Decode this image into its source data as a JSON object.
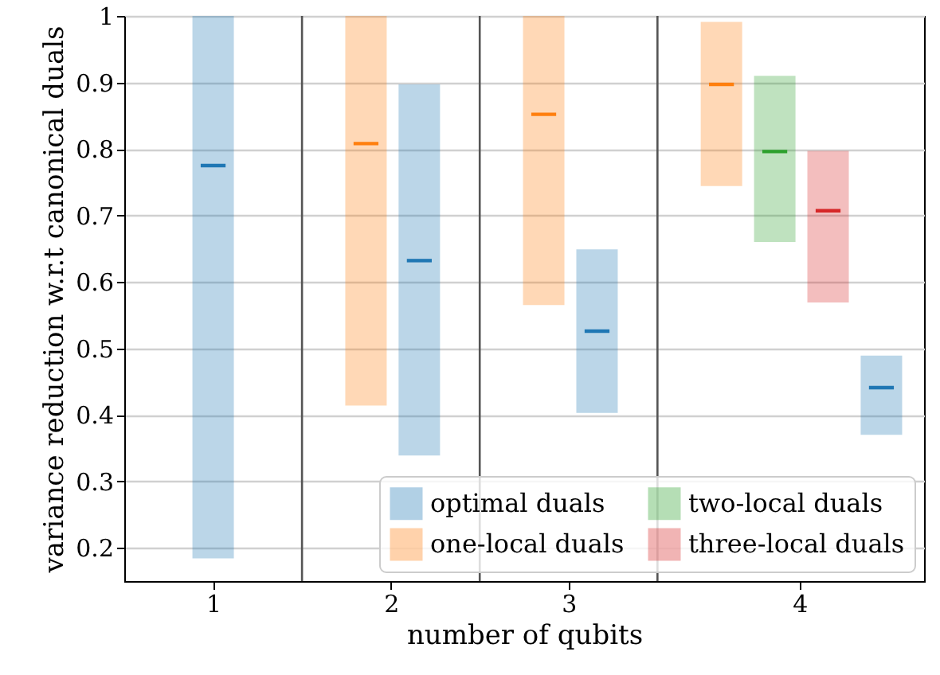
{
  "chart_data": {
    "type": "bar",
    "xlabel": "number of qubits",
    "ylabel": "variance reduction w.r.t canonical duals",
    "xlim": [
      0.5,
      5.0
    ],
    "xticks": [
      {
        "value": 1,
        "label": "1"
      },
      {
        "value": 2,
        "label": "2"
      },
      {
        "value": 3,
        "label": "3"
      },
      {
        "value": 4.3,
        "label": "4"
      }
    ],
    "ylim": [
      0.15,
      1.0
    ],
    "yticks": [
      0.2,
      0.3,
      0.4,
      0.5,
      0.6,
      0.7,
      0.8,
      0.9,
      1.0
    ],
    "grid": "y",
    "legend": "bottom right",
    "ref_lines": [
      {
        "axis": "x",
        "value": 1.5,
        "color": "#555555"
      },
      {
        "axis": "x",
        "value": 2.5,
        "color": "#555555"
      },
      {
        "axis": "x",
        "value": 3.5,
        "color": "#555555"
      }
    ],
    "series": [
      {
        "name": "optimal duals",
        "color": "#1f77b4",
        "x": [
          1.0,
          2.16,
          3.16,
          4.76
        ],
        "base": [
          0.184,
          0.339,
          0.403,
          0.37
        ],
        "values": [
          0.816,
          0.558,
          0.246,
          0.119
        ]
      },
      {
        "name": "one-local duals",
        "color": "#ff7f0e",
        "x": [
          1.86,
          2.86,
          3.86
        ],
        "base": [
          0.414,
          0.565,
          0.744
        ],
        "values": [
          0.586,
          0.435,
          0.247
        ]
      },
      {
        "name": "two-local duals",
        "color": "#2ca02c",
        "x": [
          4.16
        ],
        "base": [
          0.66
        ],
        "values": [
          0.25
        ]
      },
      {
        "name": "three-local duals",
        "color": "#d62728",
        "x": [
          4.46
        ],
        "base": [
          0.569
        ],
        "values": [
          0.228
        ]
      },
      {
        "type": "line",
        "color": "#1f77b4",
        "x": [
          0.93,
          1.07
        ],
        "values": [
          0.775,
          0.775
        ]
      },
      {
        "type": "line",
        "color": "#1f77b4",
        "x": [
          2.09,
          2.23
        ],
        "values": [
          0.632,
          0.632
        ]
      },
      {
        "type": "line",
        "color": "#1f77b4",
        "x": [
          3.09,
          3.23
        ],
        "values": [
          0.526,
          0.526
        ]
      },
      {
        "type": "line",
        "color": "#1f77b4",
        "x": [
          4.69,
          4.83
        ],
        "values": [
          0.441,
          0.441
        ]
      },
      {
        "type": "line",
        "color": "#ff7f0e",
        "x": [
          1.79,
          1.93
        ],
        "values": [
          0.808,
          0.808
        ]
      },
      {
        "type": "line",
        "color": "#ff7f0e",
        "x": [
          2.79,
          2.93
        ],
        "values": [
          0.852,
          0.852
        ]
      },
      {
        "type": "line",
        "color": "#ff7f0e",
        "x": [
          3.79,
          3.93
        ],
        "values": [
          0.897,
          0.897
        ]
      },
      {
        "type": "line",
        "color": "#2ca02c",
        "x": [
          4.09,
          4.23
        ],
        "values": [
          0.796,
          0.796
        ]
      },
      {
        "type": "line",
        "color": "#d62728",
        "x": [
          4.39,
          4.53
        ],
        "values": [
          0.707,
          0.707
        ]
      }
    ]
  }
}
